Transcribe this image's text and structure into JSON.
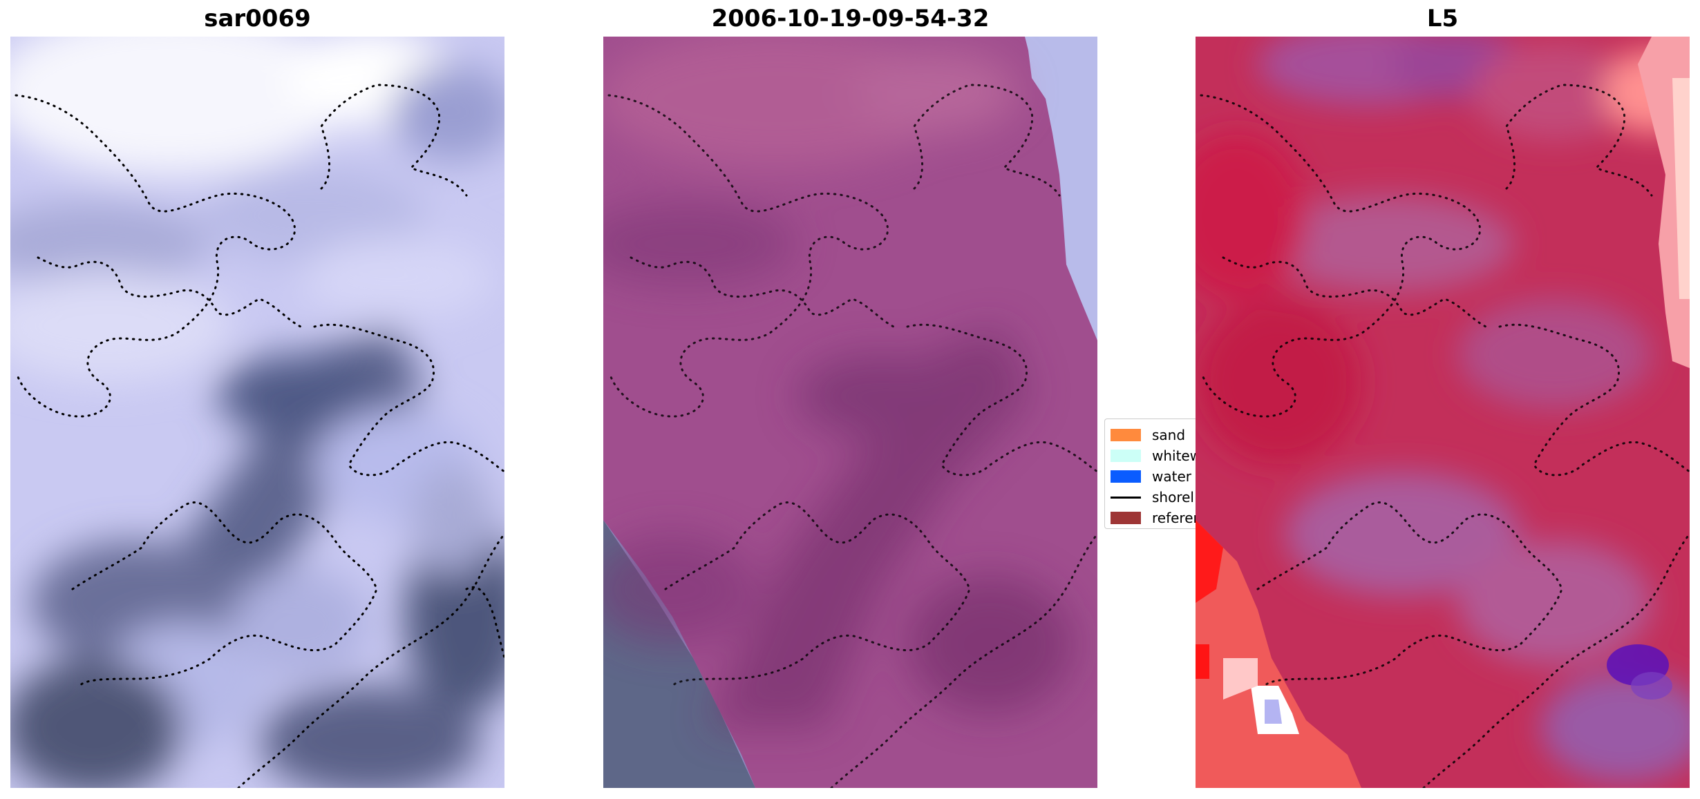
{
  "panels": [
    {
      "title": "sar0069"
    },
    {
      "title": "2006-10-19-09-54-32"
    },
    {
      "title": "L5"
    }
  ],
  "legend": {
    "items": [
      {
        "label": "sand",
        "color": "#ff8a3d",
        "kind": "patch"
      },
      {
        "label": "whitew",
        "color": "#ccfff7",
        "kind": "patch"
      },
      {
        "label": "water",
        "color": "#0a5cff",
        "kind": "patch"
      },
      {
        "label": "shorel",
        "color": "#000000",
        "kind": "line"
      },
      {
        "label": "referen",
        "color": "#9e3535",
        "kind": "patch"
      }
    ]
  },
  "colors": {
    "sar_light": "#e8e8fb",
    "sar_dark": "#5c6387",
    "magenta_overlay": "#a04e8e",
    "l5_red": "#c8264f",
    "l5_bright_red": "#ff2020",
    "l5_purple": "#5a10b8"
  },
  "icons": [
    "sand-swatch",
    "whitewater-swatch",
    "water-swatch",
    "shoreline-line-icon",
    "reference-swatch"
  ]
}
